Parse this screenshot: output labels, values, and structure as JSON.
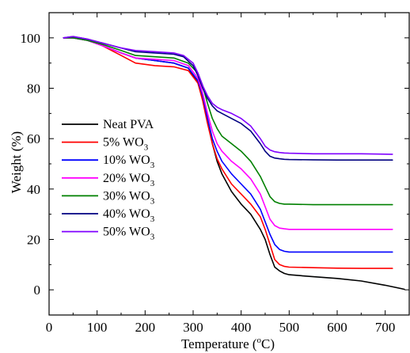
{
  "chart_data": {
    "type": "line",
    "xlabel": "Temperature (°C)",
    "xlabel_parts": {
      "pre": "Temperature (",
      "sup": "o",
      "post": "C)"
    },
    "ylabel": "Weight (%)",
    "xlim": [
      0,
      750
    ],
    "ylim": [
      -10,
      110
    ],
    "xticks": [
      0,
      100,
      200,
      300,
      400,
      500,
      600,
      700
    ],
    "yticks": [
      0,
      20,
      40,
      60,
      80,
      100
    ],
    "legend_position": "left-middle",
    "grid": false,
    "series": [
      {
        "name": "Neat PVA",
        "name_parts": {
          "base": "Neat PVA",
          "sub": ""
        },
        "color": "#000000",
        "x": [
          30,
          50,
          80,
          110,
          150,
          180,
          220,
          260,
          290,
          310,
          320,
          330,
          340,
          350,
          360,
          380,
          400,
          420,
          440,
          450,
          460,
          470,
          480,
          490,
          500,
          550,
          600,
          650,
          700,
          740
        ],
        "y": [
          100,
          100,
          99,
          97,
          94,
          92,
          91,
          90,
          88,
          82,
          76,
          67,
          58,
          51,
          46,
          39,
          34,
          30,
          24,
          20,
          14,
          9,
          7.5,
          6.5,
          6,
          5.2,
          4.5,
          3.5,
          1.8,
          0.2
        ]
      },
      {
        "name": "5% WO3",
        "name_parts": {
          "base": "5% WO",
          "sub": "3"
        },
        "color": "#ff0000",
        "x": [
          30,
          50,
          80,
          110,
          150,
          180,
          220,
          260,
          290,
          310,
          320,
          330,
          340,
          350,
          360,
          380,
          400,
          420,
          440,
          450,
          460,
          470,
          480,
          490,
          500,
          550,
          600,
          650,
          715
        ],
        "y": [
          100,
          100,
          99,
          97,
          93,
          90,
          89,
          88.5,
          87,
          82,
          75,
          66,
          58,
          52,
          48,
          42,
          38,
          34,
          29,
          24,
          18,
          12,
          10,
          9.3,
          9,
          8.8,
          8.6,
          8.5,
          8.5
        ]
      },
      {
        "name": "10% WO3",
        "name_parts": {
          "base": "10% WO",
          "sub": "3"
        },
        "color": "#0000ff",
        "x": [
          30,
          50,
          80,
          110,
          150,
          180,
          220,
          260,
          290,
          310,
          320,
          330,
          340,
          350,
          360,
          380,
          400,
          420,
          440,
          450,
          460,
          470,
          480,
          490,
          500,
          550,
          600,
          650,
          715
        ],
        "y": [
          100,
          100,
          99,
          97,
          94,
          92,
          91,
          90,
          88,
          83,
          77,
          68,
          60,
          55,
          51,
          46,
          42,
          38,
          32,
          27,
          22,
          18,
          16,
          15.3,
          15,
          15,
          15,
          15,
          15
        ]
      },
      {
        "name": "20% WO3",
        "name_parts": {
          "base": "20% WO",
          "sub": "3"
        },
        "color": "#ff00ff",
        "x": [
          30,
          50,
          80,
          110,
          150,
          180,
          220,
          260,
          290,
          310,
          320,
          330,
          340,
          350,
          360,
          380,
          400,
          420,
          440,
          450,
          460,
          470,
          480,
          490,
          500,
          550,
          600,
          650,
          715
        ],
        "y": [
          100,
          100,
          99,
          97,
          94,
          92,
          91.5,
          91,
          89,
          84,
          78,
          70,
          63,
          58,
          55,
          51,
          48,
          44,
          38,
          33,
          28,
          25.5,
          24.5,
          24.2,
          24,
          24,
          24,
          24,
          24
        ]
      },
      {
        "name": "30% WO3",
        "name_parts": {
          "base": "30% WO",
          "sub": "3"
        },
        "color": "#008000",
        "x": [
          30,
          50,
          80,
          110,
          150,
          180,
          220,
          260,
          290,
          310,
          320,
          330,
          340,
          350,
          360,
          380,
          400,
          420,
          440,
          450,
          460,
          470,
          480,
          490,
          500,
          550,
          600,
          650,
          715
        ],
        "y": [
          100,
          100,
          99,
          97.5,
          95,
          93,
          92.5,
          92,
          90,
          86,
          81,
          74,
          68,
          64,
          61,
          58,
          55,
          51,
          45,
          41,
          37,
          35,
          34.3,
          34,
          34,
          33.8,
          33.8,
          33.8,
          33.8
        ]
      },
      {
        "name": "40% WO3",
        "name_parts": {
          "base": "40% WO",
          "sub": "3"
        },
        "color": "#000080",
        "x": [
          30,
          50,
          80,
          110,
          150,
          180,
          220,
          260,
          280,
          300,
          310,
          320,
          330,
          340,
          350,
          360,
          380,
          400,
          420,
          440,
          450,
          460,
          470,
          480,
          490,
          500,
          550,
          600,
          650,
          715
        ],
        "y": [
          100,
          100.5,
          99.5,
          98,
          96,
          94.5,
          94,
          93.5,
          92.5,
          89,
          85,
          80,
          76,
          73,
          71,
          70,
          68,
          66,
          63,
          58,
          55,
          53,
          52.3,
          52,
          51.8,
          51.7,
          51.6,
          51.5,
          51.5,
          51.5
        ]
      },
      {
        "name": "50% WO3",
        "name_parts": {
          "base": "50% WO",
          "sub": "3"
        },
        "color": "#8000ff",
        "x": [
          30,
          50,
          80,
          110,
          150,
          180,
          220,
          260,
          280,
          300,
          310,
          320,
          330,
          340,
          350,
          360,
          380,
          400,
          420,
          440,
          450,
          460,
          470,
          480,
          490,
          500,
          550,
          600,
          650,
          715
        ],
        "y": [
          100,
          100.5,
          99.5,
          98,
          96,
          95,
          94.5,
          94,
          93,
          90,
          86,
          81,
          77,
          74,
          72.5,
          71.5,
          70,
          68,
          65,
          60,
          57,
          55.5,
          54.8,
          54.5,
          54.3,
          54.2,
          54,
          54,
          54,
          53.8
        ]
      }
    ]
  }
}
